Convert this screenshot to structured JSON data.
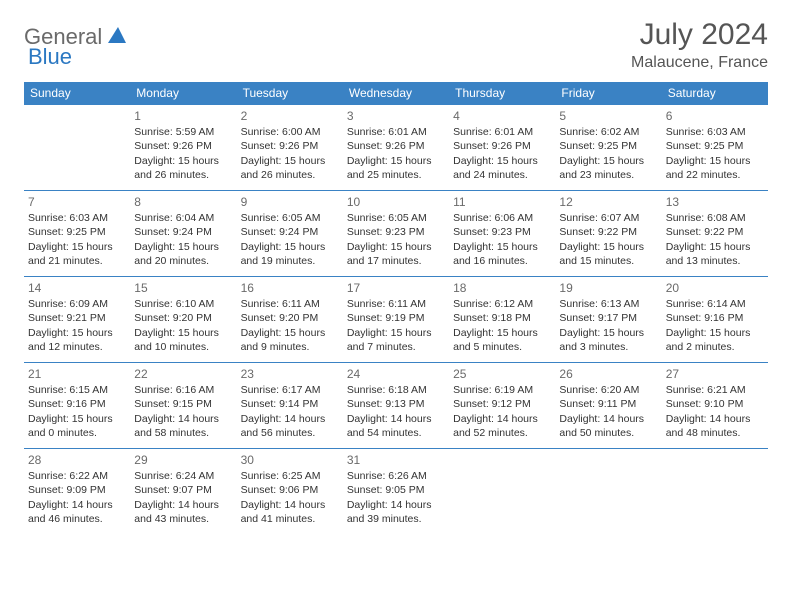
{
  "logo": {
    "general": "General",
    "blue": "Blue"
  },
  "title": "July 2024",
  "location": "Malaucene, France",
  "colors": {
    "header_bg": "#3a82c4",
    "header_text": "#ffffff",
    "border": "#3a82c4",
    "logo_gray": "#6a6a6a",
    "logo_blue": "#2b78c2",
    "title_color": "#555555"
  },
  "weekdays": [
    "Sunday",
    "Monday",
    "Tuesday",
    "Wednesday",
    "Thursday",
    "Friday",
    "Saturday"
  ],
  "weeks": [
    [
      null,
      {
        "d": "1",
        "sr": "Sunrise: 5:59 AM",
        "ss": "Sunset: 9:26 PM",
        "dl1": "Daylight: 15 hours",
        "dl2": "and 26 minutes."
      },
      {
        "d": "2",
        "sr": "Sunrise: 6:00 AM",
        "ss": "Sunset: 9:26 PM",
        "dl1": "Daylight: 15 hours",
        "dl2": "and 26 minutes."
      },
      {
        "d": "3",
        "sr": "Sunrise: 6:01 AM",
        "ss": "Sunset: 9:26 PM",
        "dl1": "Daylight: 15 hours",
        "dl2": "and 25 minutes."
      },
      {
        "d": "4",
        "sr": "Sunrise: 6:01 AM",
        "ss": "Sunset: 9:26 PM",
        "dl1": "Daylight: 15 hours",
        "dl2": "and 24 minutes."
      },
      {
        "d": "5",
        "sr": "Sunrise: 6:02 AM",
        "ss": "Sunset: 9:25 PM",
        "dl1": "Daylight: 15 hours",
        "dl2": "and 23 minutes."
      },
      {
        "d": "6",
        "sr": "Sunrise: 6:03 AM",
        "ss": "Sunset: 9:25 PM",
        "dl1": "Daylight: 15 hours",
        "dl2": "and 22 minutes."
      }
    ],
    [
      {
        "d": "7",
        "sr": "Sunrise: 6:03 AM",
        "ss": "Sunset: 9:25 PM",
        "dl1": "Daylight: 15 hours",
        "dl2": "and 21 minutes."
      },
      {
        "d": "8",
        "sr": "Sunrise: 6:04 AM",
        "ss": "Sunset: 9:24 PM",
        "dl1": "Daylight: 15 hours",
        "dl2": "and 20 minutes."
      },
      {
        "d": "9",
        "sr": "Sunrise: 6:05 AM",
        "ss": "Sunset: 9:24 PM",
        "dl1": "Daylight: 15 hours",
        "dl2": "and 19 minutes."
      },
      {
        "d": "10",
        "sr": "Sunrise: 6:05 AM",
        "ss": "Sunset: 9:23 PM",
        "dl1": "Daylight: 15 hours",
        "dl2": "and 17 minutes."
      },
      {
        "d": "11",
        "sr": "Sunrise: 6:06 AM",
        "ss": "Sunset: 9:23 PM",
        "dl1": "Daylight: 15 hours",
        "dl2": "and 16 minutes."
      },
      {
        "d": "12",
        "sr": "Sunrise: 6:07 AM",
        "ss": "Sunset: 9:22 PM",
        "dl1": "Daylight: 15 hours",
        "dl2": "and 15 minutes."
      },
      {
        "d": "13",
        "sr": "Sunrise: 6:08 AM",
        "ss": "Sunset: 9:22 PM",
        "dl1": "Daylight: 15 hours",
        "dl2": "and 13 minutes."
      }
    ],
    [
      {
        "d": "14",
        "sr": "Sunrise: 6:09 AM",
        "ss": "Sunset: 9:21 PM",
        "dl1": "Daylight: 15 hours",
        "dl2": "and 12 minutes."
      },
      {
        "d": "15",
        "sr": "Sunrise: 6:10 AM",
        "ss": "Sunset: 9:20 PM",
        "dl1": "Daylight: 15 hours",
        "dl2": "and 10 minutes."
      },
      {
        "d": "16",
        "sr": "Sunrise: 6:11 AM",
        "ss": "Sunset: 9:20 PM",
        "dl1": "Daylight: 15 hours",
        "dl2": "and 9 minutes."
      },
      {
        "d": "17",
        "sr": "Sunrise: 6:11 AM",
        "ss": "Sunset: 9:19 PM",
        "dl1": "Daylight: 15 hours",
        "dl2": "and 7 minutes."
      },
      {
        "d": "18",
        "sr": "Sunrise: 6:12 AM",
        "ss": "Sunset: 9:18 PM",
        "dl1": "Daylight: 15 hours",
        "dl2": "and 5 minutes."
      },
      {
        "d": "19",
        "sr": "Sunrise: 6:13 AM",
        "ss": "Sunset: 9:17 PM",
        "dl1": "Daylight: 15 hours",
        "dl2": "and 3 minutes."
      },
      {
        "d": "20",
        "sr": "Sunrise: 6:14 AM",
        "ss": "Sunset: 9:16 PM",
        "dl1": "Daylight: 15 hours",
        "dl2": "and 2 minutes."
      }
    ],
    [
      {
        "d": "21",
        "sr": "Sunrise: 6:15 AM",
        "ss": "Sunset: 9:16 PM",
        "dl1": "Daylight: 15 hours",
        "dl2": "and 0 minutes."
      },
      {
        "d": "22",
        "sr": "Sunrise: 6:16 AM",
        "ss": "Sunset: 9:15 PM",
        "dl1": "Daylight: 14 hours",
        "dl2": "and 58 minutes."
      },
      {
        "d": "23",
        "sr": "Sunrise: 6:17 AM",
        "ss": "Sunset: 9:14 PM",
        "dl1": "Daylight: 14 hours",
        "dl2": "and 56 minutes."
      },
      {
        "d": "24",
        "sr": "Sunrise: 6:18 AM",
        "ss": "Sunset: 9:13 PM",
        "dl1": "Daylight: 14 hours",
        "dl2": "and 54 minutes."
      },
      {
        "d": "25",
        "sr": "Sunrise: 6:19 AM",
        "ss": "Sunset: 9:12 PM",
        "dl1": "Daylight: 14 hours",
        "dl2": "and 52 minutes."
      },
      {
        "d": "26",
        "sr": "Sunrise: 6:20 AM",
        "ss": "Sunset: 9:11 PM",
        "dl1": "Daylight: 14 hours",
        "dl2": "and 50 minutes."
      },
      {
        "d": "27",
        "sr": "Sunrise: 6:21 AM",
        "ss": "Sunset: 9:10 PM",
        "dl1": "Daylight: 14 hours",
        "dl2": "and 48 minutes."
      }
    ],
    [
      {
        "d": "28",
        "sr": "Sunrise: 6:22 AM",
        "ss": "Sunset: 9:09 PM",
        "dl1": "Daylight: 14 hours",
        "dl2": "and 46 minutes."
      },
      {
        "d": "29",
        "sr": "Sunrise: 6:24 AM",
        "ss": "Sunset: 9:07 PM",
        "dl1": "Daylight: 14 hours",
        "dl2": "and 43 minutes."
      },
      {
        "d": "30",
        "sr": "Sunrise: 6:25 AM",
        "ss": "Sunset: 9:06 PM",
        "dl1": "Daylight: 14 hours",
        "dl2": "and 41 minutes."
      },
      {
        "d": "31",
        "sr": "Sunrise: 6:26 AM",
        "ss": "Sunset: 9:05 PM",
        "dl1": "Daylight: 14 hours",
        "dl2": "and 39 minutes."
      },
      null,
      null,
      null
    ]
  ]
}
